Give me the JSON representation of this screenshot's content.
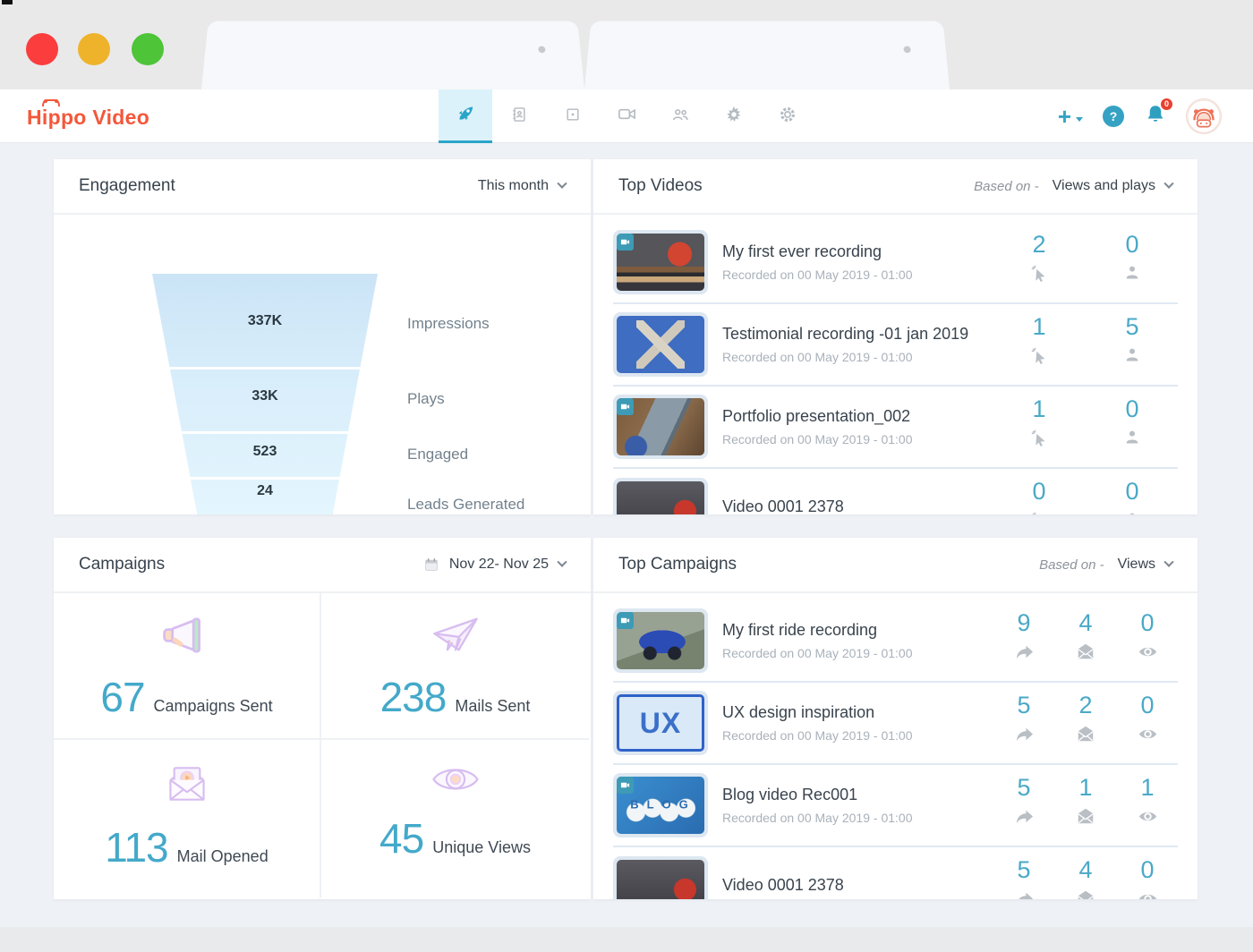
{
  "chrome": {
    "tab_count": 2
  },
  "header": {
    "logo_text": "Hippo Video",
    "nav_items": [
      "dashboard",
      "contacts",
      "records",
      "videos",
      "teams",
      "integrations",
      "settings"
    ],
    "active_nav": "dashboard",
    "actions": {
      "add_label": "+",
      "help_label": "?",
      "notification_badge": "0"
    }
  },
  "colors": {
    "accent_teal": "#3BA7C9",
    "logo_orange": "#F4573A",
    "funnel_top": "#CBE4F6",
    "funnel_bottom": "#E4F6FE",
    "stat_number": "#4AA9C8"
  },
  "engagement": {
    "title": "Engagement",
    "filter": "This month",
    "funnel": [
      {
        "value": "337K",
        "label": "Impressions"
      },
      {
        "value": "33K",
        "label": "Plays"
      },
      {
        "value": "523",
        "label": "Engaged"
      },
      {
        "value": "24",
        "label": "Leads Generated"
      }
    ]
  },
  "top_videos": {
    "title": "Top Videos",
    "based_on": "Based on -",
    "filter": "Views and plays",
    "stat_icons": [
      "clicks",
      "plays"
    ],
    "rows": [
      {
        "title": "My first ever recording",
        "meta": "Recorded on 00 May 2019 - 01:00",
        "stats": [
          "2",
          "0"
        ],
        "thumb": "books",
        "badge": true
      },
      {
        "title": "Testimonial recording -01 jan 2019",
        "meta": "Recorded on 00 May 2019 - 01:00",
        "stats": [
          "1",
          "5"
        ],
        "thumb": "sky",
        "badge": false
      },
      {
        "title": "Portfolio presentation_002",
        "meta": "Recorded on 00 May 2019 - 01:00",
        "stats": [
          "1",
          "0"
        ],
        "thumb": "tablet",
        "badge": true
      },
      {
        "title": "Video 0001  2378",
        "meta": "",
        "stats": [
          "0",
          "0"
        ],
        "thumb": "video0001",
        "badge": false
      }
    ]
  },
  "campaigns": {
    "title": "Campaigns",
    "filter": "Nov 22- Nov 25",
    "stats": [
      {
        "value": "67",
        "label": "Campaigns Sent",
        "icon": "megaphone"
      },
      {
        "value": "238",
        "label": "Mails Sent",
        "icon": "paper-plane"
      },
      {
        "value": "113",
        "label": "Mail Opened",
        "icon": "mail-open"
      },
      {
        "value": "45",
        "label": "Unique Views",
        "icon": "eye"
      }
    ]
  },
  "top_campaigns": {
    "title": "Top Campaigns",
    "based_on": "Based on -",
    "filter": "Views",
    "stat_icons": [
      "shares",
      "mail-opens",
      "views"
    ],
    "rows": [
      {
        "title": "My first ride recording",
        "meta": "Recorded on 00 May 2019 - 01:00",
        "stats": [
          "9",
          "4",
          "0"
        ],
        "thumb": "bike",
        "badge": true
      },
      {
        "title": "UX design inspiration",
        "meta": "Recorded on 00 May 2019 - 01:00",
        "stats": [
          "5",
          "2",
          "0"
        ],
        "thumb": "ux",
        "badge": false,
        "thumb_text": "UX"
      },
      {
        "title": "Blog video Rec001",
        "meta": "Recorded on 00 May 2019 - 01:00",
        "stats": [
          "5",
          "1",
          "1"
        ],
        "thumb": "blog",
        "badge": true,
        "thumb_text": "BLOG"
      },
      {
        "title": "Video 0001  2378",
        "meta": "",
        "stats": [
          "5",
          "4",
          "0"
        ],
        "thumb": "video0001",
        "badge": false
      }
    ]
  },
  "chart_data": {
    "type": "bar",
    "variant": "funnel",
    "title": "Engagement",
    "categories": [
      "Impressions",
      "Plays",
      "Engaged",
      "Leads Generated"
    ],
    "values": [
      337000,
      33000,
      523,
      24
    ],
    "value_labels": [
      "337K",
      "33K",
      "523",
      "24"
    ],
    "period": "This month",
    "legend_position": "right"
  }
}
